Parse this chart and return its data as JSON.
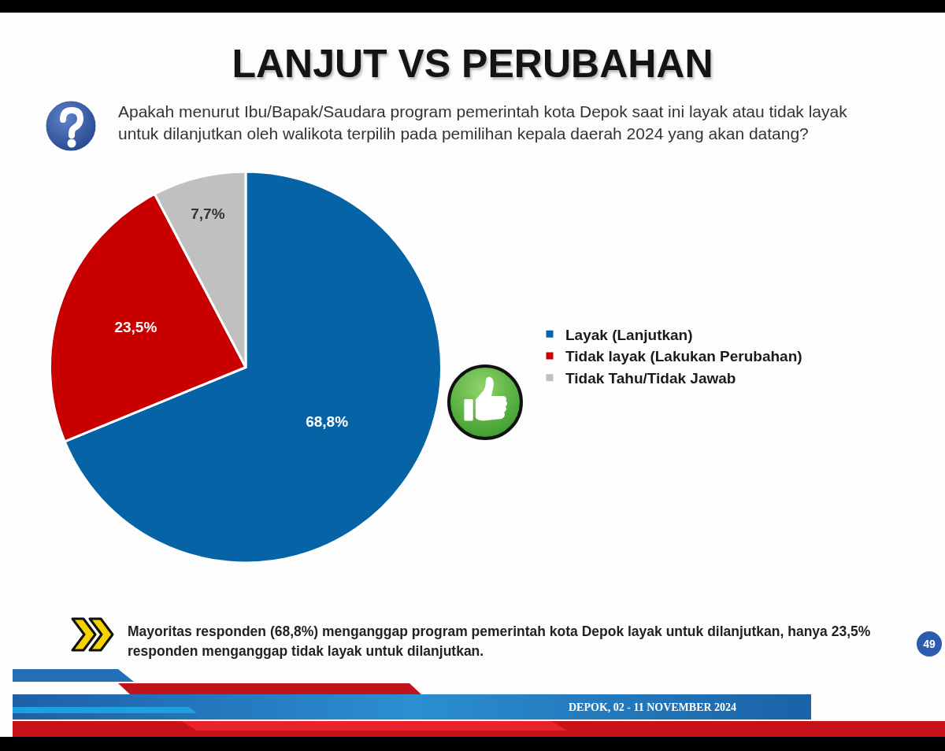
{
  "chart_data": {
    "type": "pie",
    "title": "LANJUT VS PERUBAHAN",
    "subtitle": "Apakah menurut Ibu/Bapak/Saudara program pemerintah kota Depok saat ini layak atau tidak layak untuk dilanjutkan oleh walikota terpilih pada pemilihan kepala daerah 2024 yang akan datang?",
    "categories": [
      "Layak (Lanjutkan)",
      "Tidak layak (Lakukan Perubahan)",
      "Tidak Tahu/Tidak Jawab"
    ],
    "values": [
      68.8,
      23.5,
      7.7
    ],
    "colors": [
      "#0563a6",
      "#c80000",
      "#c0c0c0"
    ],
    "value_labels": [
      "68,8%",
      "23,5%",
      "7,7%"
    ],
    "legend": "right",
    "annotations": [
      "Mayoritas responden (68,8%) menganggap program pemerintah kota Depok layak untuk dilanjutkan, hanya 23,5% responden menganggap tidak layak untuk dilanjutkan.",
      "DEPOK, 02 - 11 NOVEMBER 2024",
      "49"
    ]
  }
}
